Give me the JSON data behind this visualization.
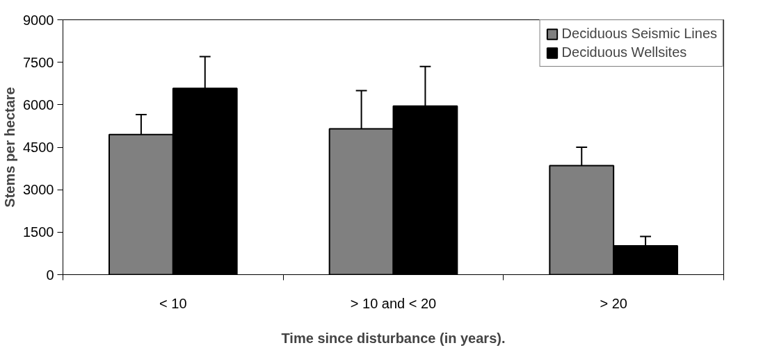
{
  "chart_data": {
    "type": "bar",
    "xlabel": "Time since disturbance (in years).",
    "ylabel": "Stems per hectare",
    "categories": [
      "< 10",
      "> 10 and < 20",
      "> 20"
    ],
    "series": [
      {
        "name": "Deciduous Seismic Lines",
        "color": "#808080",
        "values": [
          4950,
          5150,
          3850
        ],
        "errors": [
          [
            4950,
            5650
          ],
          [
            5150,
            6500
          ],
          [
            3850,
            4500
          ]
        ]
      },
      {
        "name": "Deciduous Wellsites",
        "color": "#000000",
        "values": [
          6580,
          5950,
          1020
        ],
        "errors": [
          [
            6580,
            7700
          ],
          [
            5950,
            7350
          ],
          [
            1020,
            1350
          ]
        ]
      }
    ],
    "ylim": [
      0,
      9000
    ],
    "yticks": [
      0,
      1500,
      3000,
      4500,
      6000,
      7500,
      9000
    ],
    "grid": false,
    "legend": "top right"
  }
}
